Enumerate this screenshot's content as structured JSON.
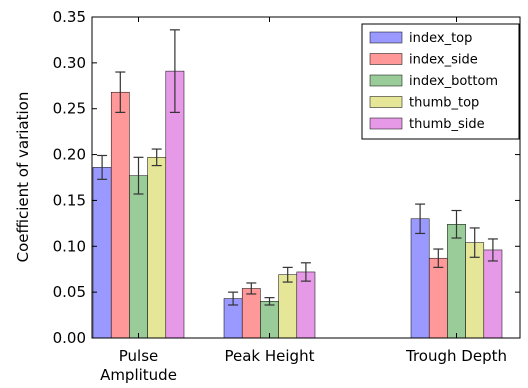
{
  "chart_data": {
    "type": "bar",
    "title": "",
    "xlabel": "",
    "ylabel": "Coefficient of variation",
    "ylim": [
      0,
      0.35
    ],
    "yticks": [
      "0.00",
      "0.05",
      "0.10",
      "0.15",
      "0.20",
      "0.25",
      "0.30",
      "0.35"
    ],
    "categories": [
      [
        "Pulse",
        "Amplitude"
      ],
      [
        "Peak Height"
      ],
      [
        "Trough Depth"
      ]
    ],
    "series": [
      {
        "name": "index_top",
        "color": "#9999ff",
        "values": [
          0.186,
          0.043,
          0.13
        ],
        "errors": [
          0.013,
          0.007,
          0.016
        ]
      },
      {
        "name": "index_side",
        "color": "#ff9999",
        "values": [
          0.268,
          0.054,
          0.087
        ],
        "errors": [
          0.022,
          0.006,
          0.01
        ]
      },
      {
        "name": "index_bottom",
        "color": "#99cc99",
        "values": [
          0.177,
          0.04,
          0.124
        ],
        "errors": [
          0.02,
          0.004,
          0.015
        ]
      },
      {
        "name": "thumb_top",
        "color": "#e6e699",
        "values": [
          0.197,
          0.069,
          0.104
        ],
        "errors": [
          0.009,
          0.008,
          0.016
        ]
      },
      {
        "name": "thumb_side",
        "color": "#e699e6",
        "values": [
          0.291,
          0.072,
          0.096
        ],
        "errors": [
          0.045,
          0.01,
          0.012
        ]
      }
    ],
    "legend_position": "top-right",
    "grid": false
  }
}
